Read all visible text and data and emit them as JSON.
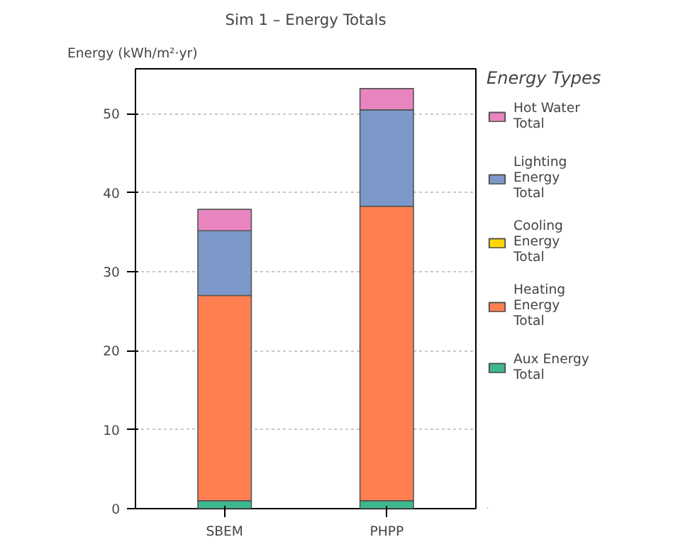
{
  "chart_data": {
    "type": "bar",
    "title": "Sim 1 – Energy Totals",
    "ylabel": "Energy (kWh/m²·yr)",
    "legend_title": "Energy Types",
    "categories": [
      "SBEM",
      "PHPP"
    ],
    "stacked": true,
    "series": [
      {
        "name": "Aux Energy Total",
        "color": "#3cb890",
        "values": [
          1.0,
          1.0
        ]
      },
      {
        "name": "Heating Energy Total",
        "color": "#ff7f50",
        "values": [
          26.0,
          37.3
        ]
      },
      {
        "name": "Cooling Energy Total",
        "color": "#ffd700",
        "values": [
          0,
          0
        ]
      },
      {
        "name": "Lighting Energy Total",
        "color": "#7b98c8",
        "values": [
          8.2,
          12.2
        ]
      },
      {
        "name": "Hot Water Total",
        "color": "#e885bf",
        "values": [
          2.7,
          2.7
        ]
      }
    ],
    "ylim": [
      0,
      55.7
    ],
    "yticks": [
      0,
      10,
      20,
      30,
      40,
      50
    ],
    "grid": "y",
    "legend": "right"
  }
}
